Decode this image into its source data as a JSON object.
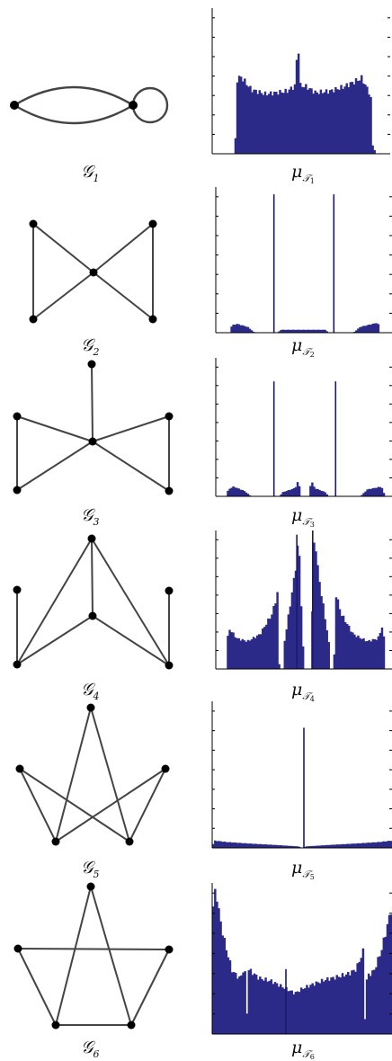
{
  "colors": {
    "edge": "#444444",
    "node": "#000000",
    "bar": "#2c2a88",
    "bar_edge": "#1b1a6a",
    "axis": "#000000"
  },
  "panels": [
    {
      "graph_label": {
        "symbol": "𝒢",
        "sub": "1"
      },
      "hist_label": {
        "symbol": "μ",
        "sub": "𝒯",
        "subsub": "1"
      }
    },
    {
      "graph_label": {
        "symbol": "𝒢",
        "sub": "2"
      },
      "hist_label": {
        "symbol": "μ",
        "sub": "𝒯",
        "subsub": "2"
      }
    },
    {
      "graph_label": {
        "symbol": "𝒢",
        "sub": "3"
      },
      "hist_label": {
        "symbol": "μ",
        "sub": "𝒯",
        "subsub": "3"
      }
    },
    {
      "graph_label": {
        "symbol": "𝒢",
        "sub": "4"
      },
      "hist_label": {
        "symbol": "μ",
        "sub": "𝒯",
        "subsub": "4"
      }
    },
    {
      "graph_label": {
        "symbol": "𝒢",
        "sub": "5"
      },
      "hist_label": {
        "symbol": "μ",
        "sub": "𝒯",
        "subsub": "5"
      }
    },
    {
      "graph_label": {
        "symbol": "𝒢",
        "sub": "6"
      },
      "hist_label": {
        "symbol": "μ",
        "sub": "𝒯",
        "subsub": "6"
      }
    }
  ],
  "chart_data": [
    {
      "type": "bar",
      "title": "",
      "description_series": "eigenvalue distribution histogram",
      "envelope": [
        [
          0,
          0
        ],
        [
          0.13,
          0
        ],
        [
          0.131,
          0.5
        ],
        [
          0.16,
          0.53
        ],
        [
          0.22,
          0.44
        ],
        [
          0.3,
          0.41
        ],
        [
          0.42,
          0.43
        ],
        [
          0.47,
          0.47
        ],
        [
          0.48,
          0.9
        ],
        [
          0.49,
          0.47
        ],
        [
          0.53,
          0.46
        ],
        [
          0.58,
          0.42
        ],
        [
          0.66,
          0.43
        ],
        [
          0.74,
          0.46
        ],
        [
          0.84,
          0.52
        ],
        [
          0.89,
          0.4
        ],
        [
          0.9,
          0.06
        ],
        [
          0.92,
          0
        ],
        [
          1,
          0
        ]
      ],
      "spikes": [],
      "ylim": [
        0,
        1
      ]
    },
    {
      "type": "bar",
      "title": "",
      "envelope": [
        [
          0,
          0
        ],
        [
          0.08,
          0
        ],
        [
          0.09,
          0.05
        ],
        [
          0.12,
          0.06
        ],
        [
          0.18,
          0.04
        ],
        [
          0.22,
          0
        ],
        [
          0.35,
          0
        ],
        [
          0.37,
          0.02
        ],
        [
          0.62,
          0.02
        ],
        [
          0.64,
          0
        ],
        [
          0.78,
          0
        ],
        [
          0.82,
          0.04
        ],
        [
          0.89,
          0.06
        ],
        [
          0.92,
          0.07
        ],
        [
          0.93,
          0
        ],
        [
          1,
          0
        ]
      ],
      "spikes": [
        [
          0.33,
          0.95
        ],
        [
          0.67,
          0.95
        ]
      ],
      "ylim": [
        0,
        1
      ]
    },
    {
      "type": "bar",
      "title": "",
      "envelope": [
        [
          0,
          0
        ],
        [
          0.06,
          0
        ],
        [
          0.07,
          0.05
        ],
        [
          0.1,
          0.07
        ],
        [
          0.16,
          0.04
        ],
        [
          0.2,
          0
        ],
        [
          0.36,
          0
        ],
        [
          0.38,
          0.03
        ],
        [
          0.45,
          0.06
        ],
        [
          0.47,
          0.12
        ],
        [
          0.48,
          0
        ],
        [
          0.53,
          0
        ],
        [
          0.54,
          0.12
        ],
        [
          0.56,
          0.06
        ],
        [
          0.62,
          0.03
        ],
        [
          0.64,
          0
        ],
        [
          0.82,
          0
        ],
        [
          0.86,
          0.05
        ],
        [
          0.94,
          0.07
        ],
        [
          0.96,
          0
        ],
        [
          1,
          0
        ]
      ],
      "spikes": [
        [
          0.33,
          0.83
        ],
        [
          0.68,
          0.83
        ]
      ],
      "ylim": [
        0,
        1
      ]
    },
    {
      "type": "bar",
      "title": "",
      "envelope": [
        [
          0,
          0
        ],
        [
          0.06,
          0
        ],
        [
          0.07,
          0.3
        ],
        [
          0.12,
          0.22
        ],
        [
          0.18,
          0.2
        ],
        [
          0.25,
          0.25
        ],
        [
          0.32,
          0.4
        ],
        [
          0.35,
          0.55
        ],
        [
          0.36,
          0
        ],
        [
          0.38,
          0
        ],
        [
          0.39,
          0.2
        ],
        [
          0.42,
          0.45
        ],
        [
          0.45,
          0.7
        ],
        [
          0.47,
          0.95
        ],
        [
          0.48,
          0.6
        ],
        [
          0.5,
          0
        ],
        [
          0.54,
          0
        ],
        [
          0.55,
          0.6
        ],
        [
          0.56,
          1.0
        ],
        [
          0.58,
          0.7
        ],
        [
          0.61,
          0.45
        ],
        [
          0.64,
          0.2
        ],
        [
          0.65,
          0
        ],
        [
          0.67,
          0
        ],
        [
          0.68,
          0.55
        ],
        [
          0.71,
          0.4
        ],
        [
          0.78,
          0.25
        ],
        [
          0.86,
          0.2
        ],
        [
          0.92,
          0.22
        ],
        [
          0.95,
          0.33
        ],
        [
          0.96,
          0
        ],
        [
          1,
          0
        ]
      ],
      "spikes": [
        [
          0.46,
          0.97
        ],
        [
          0.55,
          1.0
        ]
      ],
      "ylim": [
        0,
        1
      ]
    },
    {
      "type": "bar",
      "title": "",
      "envelope": [
        [
          0,
          0
        ],
        [
          0.01,
          0.05
        ],
        [
          0.08,
          0.04
        ],
        [
          0.2,
          0.03
        ],
        [
          0.35,
          0.02
        ],
        [
          0.48,
          0.01
        ],
        [
          0.5,
          0
        ],
        [
          0.52,
          0.01
        ],
        [
          0.65,
          0.02
        ],
        [
          0.8,
          0.03
        ],
        [
          0.93,
          0.04
        ],
        [
          1,
          0.05
        ]
      ],
      "spikes": [
        [
          0.51,
          0.82
        ]
      ],
      "ylim": [
        0,
        1
      ]
    },
    {
      "type": "bar",
      "title": "",
      "envelope": [
        [
          0,
          0.8
        ],
        [
          0.02,
          0.97
        ],
        [
          0.04,
          0.78
        ],
        [
          0.07,
          0.6
        ],
        [
          0.11,
          0.42
        ],
        [
          0.15,
          0.37
        ],
        [
          0.17,
          0.4
        ],
        [
          0.18,
          0.51
        ],
        [
          0.19,
          0.03
        ],
        [
          0.2,
          0.43
        ],
        [
          0.26,
          0.37
        ],
        [
          0.33,
          0.35
        ],
        [
          0.41,
          0.3
        ],
        [
          0.46,
          0.27
        ],
        [
          0.5,
          0.3
        ],
        [
          0.56,
          0.33
        ],
        [
          0.63,
          0.36
        ],
        [
          0.7,
          0.38
        ],
        [
          0.76,
          0.4
        ],
        [
          0.8,
          0.43
        ],
        [
          0.84,
          0.55
        ],
        [
          0.85,
          0.05
        ],
        [
          0.86,
          0.38
        ],
        [
          0.9,
          0.42
        ],
        [
          0.94,
          0.55
        ],
        [
          0.98,
          0.75
        ],
        [
          1,
          0.85
        ]
      ],
      "spikes": [
        [
          0.41,
          0.43
        ]
      ],
      "ylim": [
        0,
        1
      ]
    }
  ]
}
